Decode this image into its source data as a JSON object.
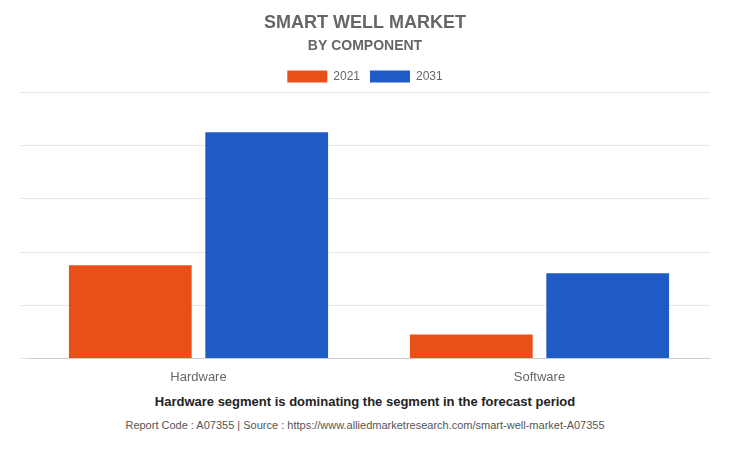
{
  "chart_data": {
    "type": "bar",
    "title": "SMART WELL MARKET",
    "subtitle": "BY COMPONENT",
    "categories": [
      "Hardware",
      "Software"
    ],
    "series": [
      {
        "name": "2021",
        "color": "#E8501A",
        "values": [
          3.5,
          0.9
        ]
      },
      {
        "name": "2031",
        "color": "#1F5BC4",
        "values": [
          8.5,
          3.2
        ]
      }
    ],
    "ylim": [
      0,
      10
    ],
    "yticks": [
      0,
      2,
      4,
      6,
      8,
      10
    ],
    "grid": true,
    "legend": "top",
    "tick_labels": "x",
    "annotations": [
      "Hardware segment is dominating the segment in the forecast period",
      "Report Code : A07355  |  Source : https://www.alliedmarketresearch.com/smart-well-market-A07355"
    ]
  }
}
